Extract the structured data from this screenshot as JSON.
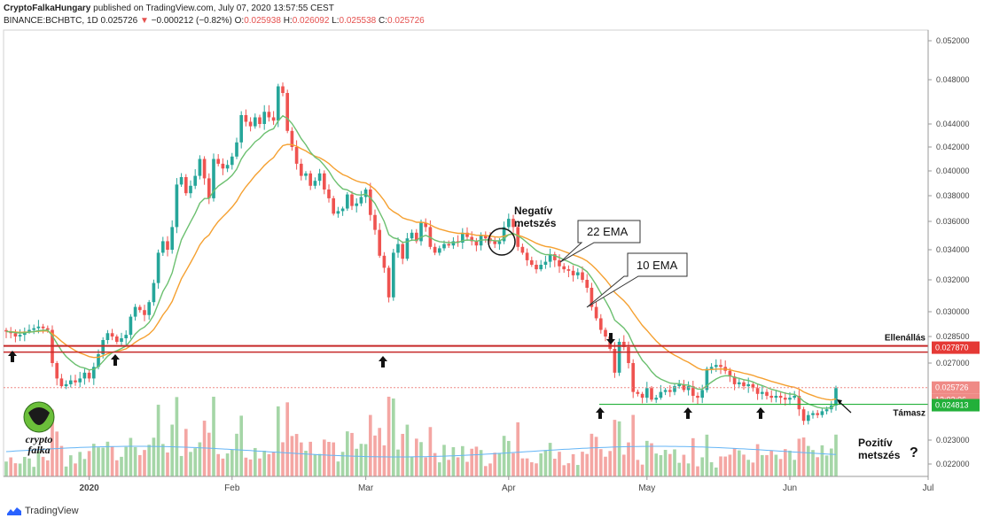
{
  "header": {
    "author": "CryptoFalkaHungary",
    "published": "published on TradingView.com, July 07, 2020 13:57:55 CEST",
    "symbol": "BINANCE:BCHBTC, 1D",
    "last": "0.025726",
    "arrow": "▼",
    "change": "−0.000212 (−0.82%)",
    "o_label": "O:",
    "o_val": "0.025938",
    "h_label": "H:",
    "h_val": "0.026092",
    "l_label": "L:",
    "l_val": "0.025538",
    "c_label": "C:",
    "c_val": "0.025726"
  },
  "footer": {
    "brand": "TradingView"
  },
  "logo": {
    "line1": "crypto",
    "line2": "falka"
  },
  "chart_data": {
    "type": "candlestick",
    "yaxis_labels": [
      "0.052000",
      "0.048000",
      "0.044000",
      "0.042000",
      "0.040000",
      "0.038000",
      "0.036000",
      "0.034000",
      "0.032000",
      "0.030000",
      "0.028500",
      "0.027000",
      "0.023000",
      "0.022000"
    ],
    "yaxis_ticks": [
      0.052,
      0.048,
      0.044,
      0.042,
      0.04,
      0.038,
      0.036,
      0.034,
      0.032,
      0.03,
      0.0285,
      0.027,
      0.023,
      0.022
    ],
    "xaxis_labels": [
      "2020",
      "Feb",
      "Mar",
      "Apr",
      "May",
      "Jun",
      "Jul"
    ],
    "xaxis_positions": [
      18,
      49,
      78,
      109,
      139,
      170,
      200
    ],
    "price_tags": [
      {
        "value": 0.02787,
        "label": "0.027870",
        "color": "#e53935"
      },
      {
        "value": 0.025726,
        "label": "0.025726",
        "color": "#ef8a86"
      },
      {
        "value": 0.025726,
        "label": "12:02:06",
        "color": "#ef8a86",
        "countdown": true
      },
      {
        "value": 0.024813,
        "label": "0.024813",
        "color": "#22b03a"
      }
    ],
    "levels": [
      {
        "name": "Ellenállás",
        "value": 0.02787,
        "color": "#c62828"
      },
      {
        "name": "Támasz",
        "value": 0.024813,
        "color": "#22b03a"
      }
    ],
    "annotations": [
      {
        "text": "Negatív",
        "text2": "metszés"
      },
      {
        "text": "22 EMA"
      },
      {
        "text": "10 EMA"
      },
      {
        "text": "Pozitív",
        "text2": "metszés"
      },
      {
        "text": "?"
      }
    ],
    "ema_series": [
      {
        "name": "22 EMA",
        "color": "#f5a030"
      },
      {
        "name": "10 EMA",
        "color": "#6cc070"
      }
    ],
    "closes": [
      0.0288,
      0.0287,
      0.0285,
      0.0286,
      0.0288,
      0.0289,
      0.029,
      0.0291,
      0.029,
      0.0289,
      0.027,
      0.0262,
      0.0258,
      0.0259,
      0.0261,
      0.026,
      0.0262,
      0.0265,
      0.0262,
      0.0268,
      0.0275,
      0.0283,
      0.0287,
      0.0285,
      0.0282,
      0.0284,
      0.0286,
      0.0297,
      0.0303,
      0.0301,
      0.0298,
      0.0306,
      0.0318,
      0.0338,
      0.0346,
      0.034,
      0.0356,
      0.0389,
      0.0395,
      0.0382,
      0.0388,
      0.0396,
      0.041,
      0.0394,
      0.0378,
      0.041,
      0.0406,
      0.0402,
      0.0405,
      0.0412,
      0.0424,
      0.0448,
      0.0442,
      0.0438,
      0.0446,
      0.044,
      0.0451,
      0.0446,
      0.0443,
      0.0474,
      0.0468,
      0.0434,
      0.042,
      0.0406,
      0.0396,
      0.0398,
      0.0388,
      0.0392,
      0.0398,
      0.0385,
      0.0378,
      0.0366,
      0.0368,
      0.037,
      0.0381,
      0.0372,
      0.0374,
      0.0379,
      0.0385,
      0.0365,
      0.0354,
      0.0336,
      0.0328,
      0.0309,
      0.0338,
      0.0344,
      0.0334,
      0.0348,
      0.0352,
      0.0346,
      0.0359,
      0.0356,
      0.0342,
      0.0338,
      0.0341,
      0.0344,
      0.0343,
      0.0346,
      0.0345,
      0.0352,
      0.0349,
      0.0346,
      0.0343,
      0.035,
      0.0348,
      0.0346,
      0.0344,
      0.0346,
      0.0356,
      0.0362,
      0.0356,
      0.0342,
      0.0338,
      0.0333,
      0.033,
      0.0327,
      0.033,
      0.0332,
      0.0337,
      0.0333,
      0.0329,
      0.0327,
      0.0326,
      0.0323,
      0.0325,
      0.032,
      0.0315,
      0.0303,
      0.0296,
      0.0289,
      0.0285,
      0.0278,
      0.0265,
      0.0282,
      0.0279,
      0.027,
      0.0255,
      0.0254,
      0.0252,
      0.0257,
      0.0251,
      0.0252,
      0.0255,
      0.0256,
      0.0255,
      0.0258,
      0.0259,
      0.0256,
      0.0258,
      0.0253,
      0.0252,
      0.0256,
      0.0267,
      0.0268,
      0.0269,
      0.0268,
      0.0266,
      0.0263,
      0.0259,
      0.026,
      0.0258,
      0.0259,
      0.0257,
      0.0254,
      0.0255,
      0.0253,
      0.0252,
      0.0253,
      0.0252,
      0.0251,
      0.0252,
      0.0253,
      0.0246,
      0.024,
      0.0243,
      0.0244,
      0.0243,
      0.0245,
      0.0246,
      0.0248,
      0.0257
    ]
  }
}
